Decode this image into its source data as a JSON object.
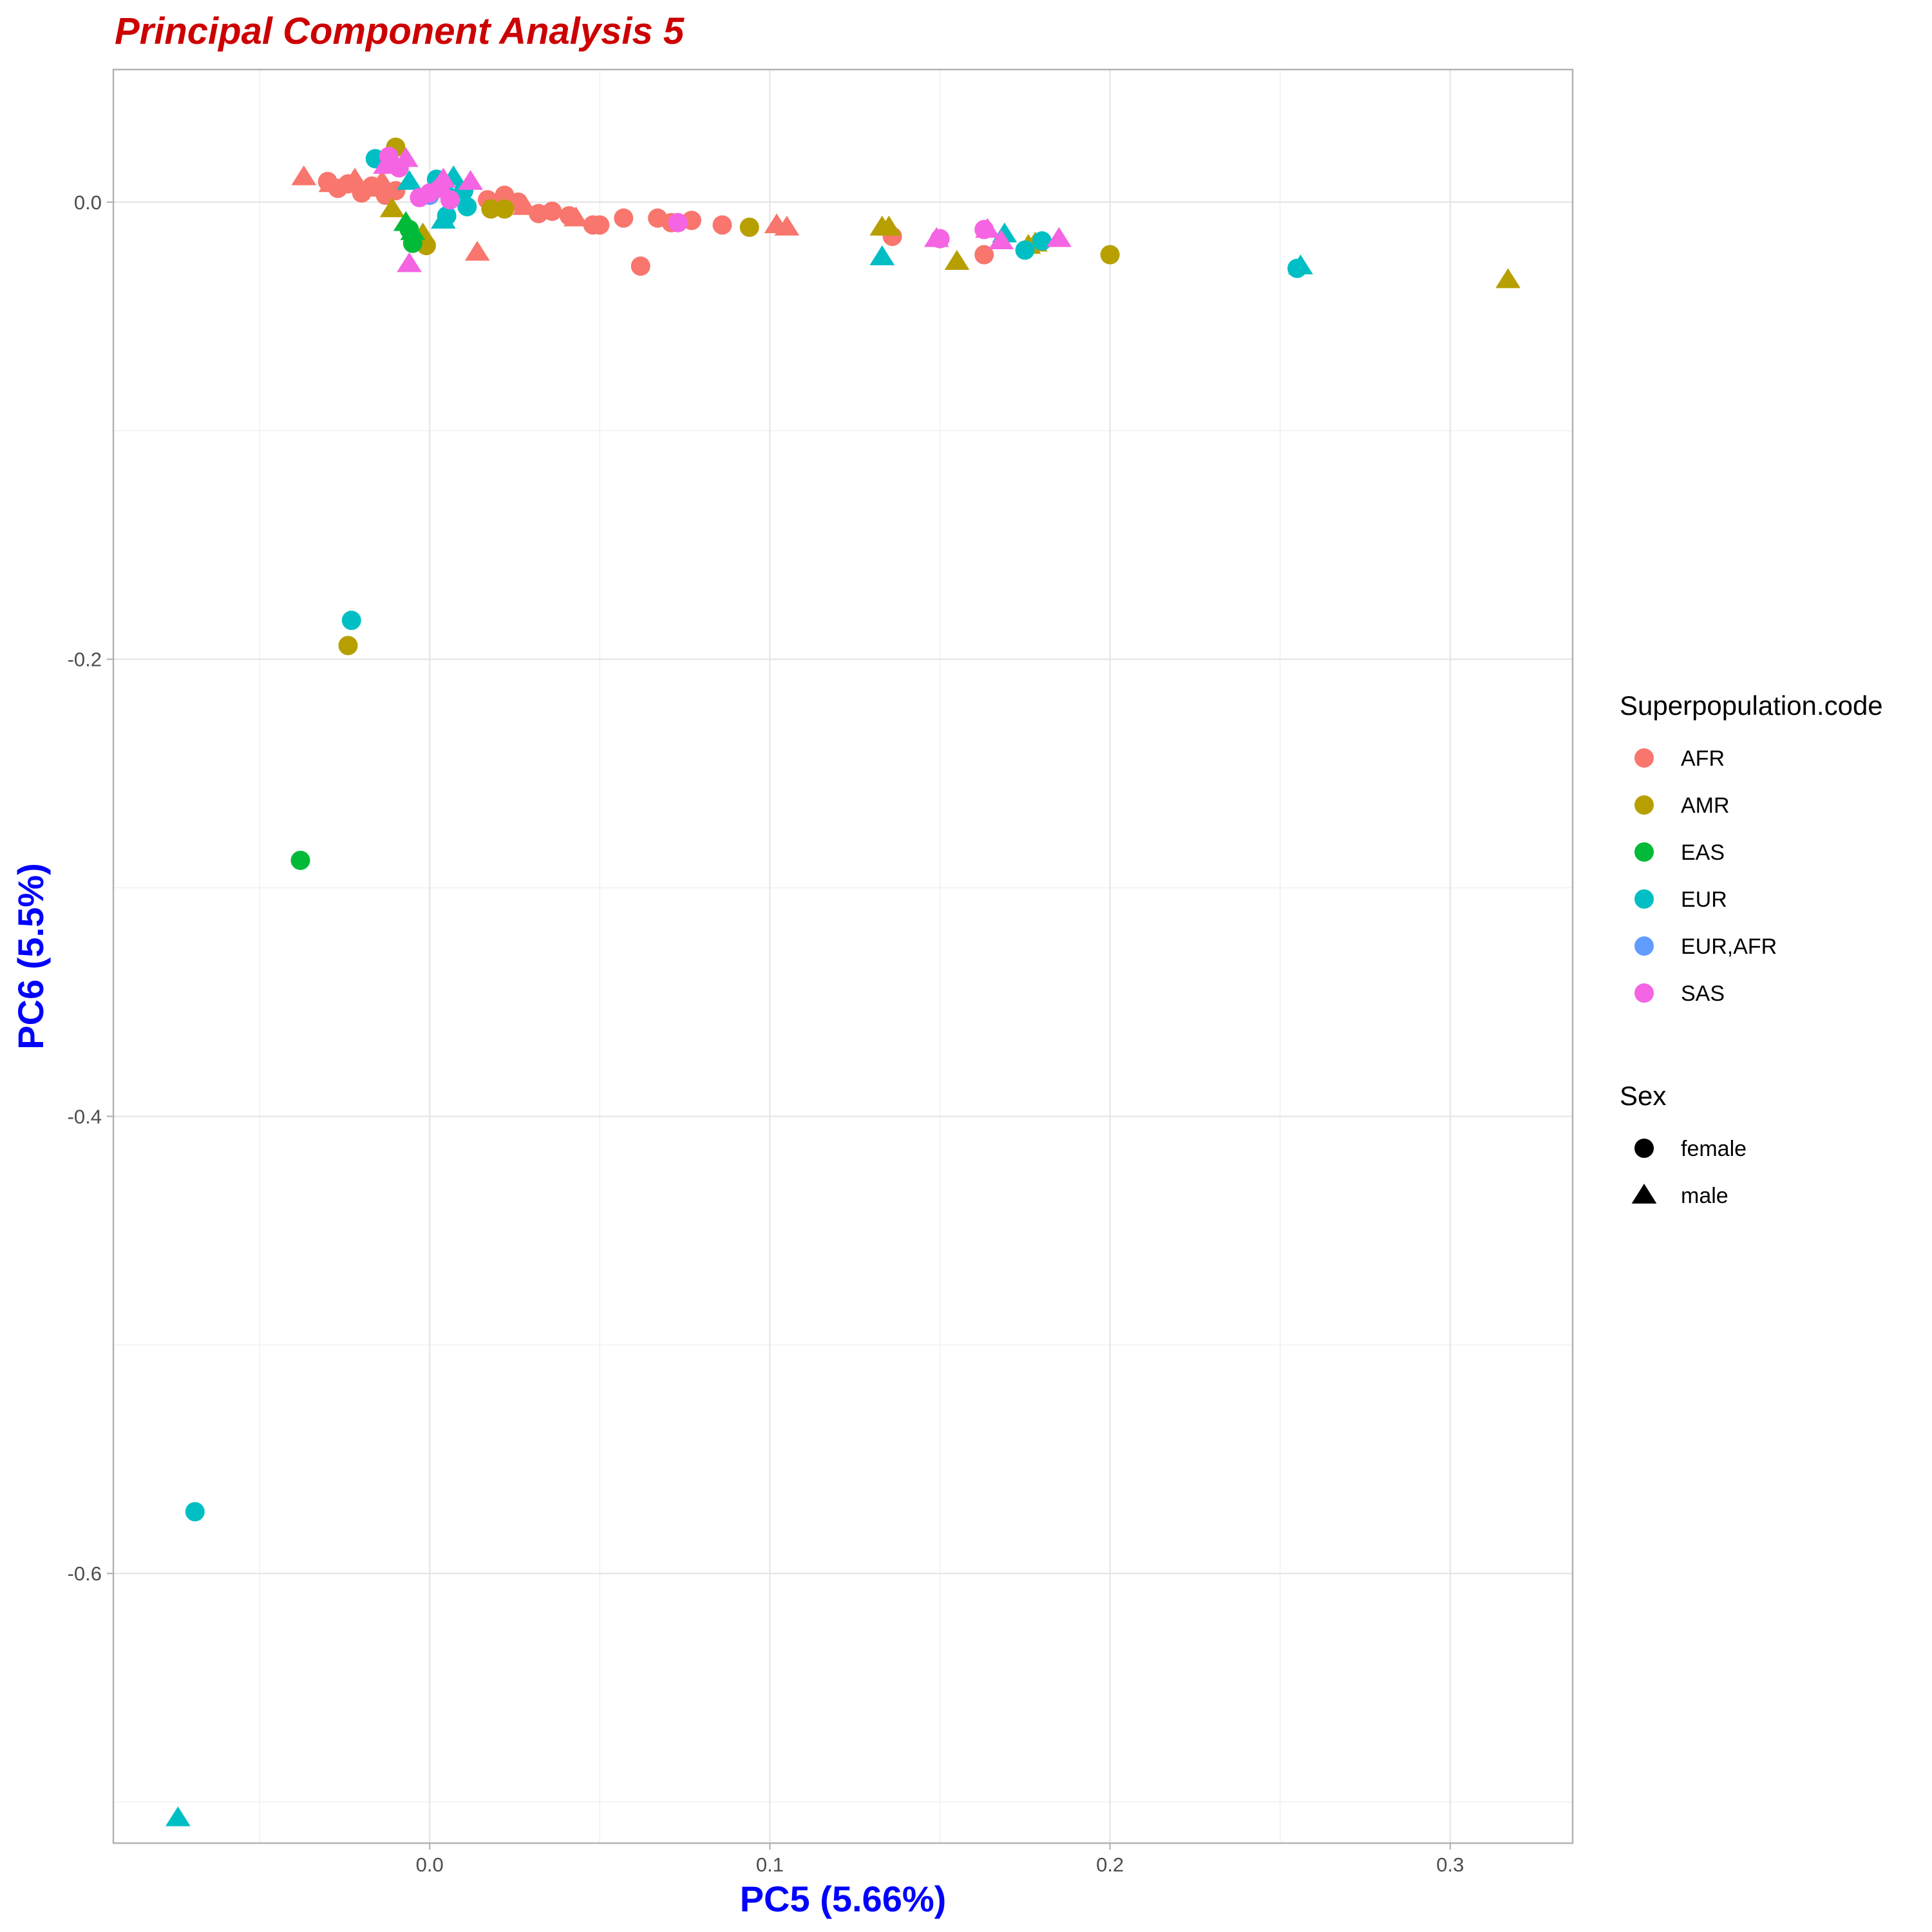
{
  "chart_data": {
    "type": "scatter",
    "title": "Principal Component Analysis 5",
    "xlabel": "PC5 (5.66%)",
    "ylabel": "PC6 (5.5%)",
    "xlim": [
      -0.093,
      0.336
    ],
    "ylim": [
      -0.718,
      0.058
    ],
    "x_ticks": [
      0.0,
      0.1,
      0.2,
      0.3
    ],
    "x_tick_labels": [
      "0.0",
      "0.1",
      "0.2",
      "0.3"
    ],
    "y_ticks": [
      0.0,
      -0.2,
      -0.4,
      -0.6
    ],
    "y_tick_labels": [
      "0.0",
      "-0.2",
      "-0.4",
      "-0.6"
    ],
    "grid": true,
    "legend_position": "right",
    "title_color": "#CC0000",
    "axis_title_color": "#0000FF",
    "legends": [
      {
        "title": "Superpopulation.code",
        "entries": [
          {
            "label": "AFR",
            "color": "#F8766D"
          },
          {
            "label": "AMR",
            "color": "#B79F00"
          },
          {
            "label": "EAS",
            "color": "#00BA38"
          },
          {
            "label": "EUR",
            "color": "#00BFC4"
          },
          {
            "label": "EUR,AFR",
            "color": "#619CFF"
          },
          {
            "label": "SAS",
            "color": "#F564E3"
          }
        ]
      },
      {
        "title": "Sex",
        "entries": [
          {
            "label": "female",
            "shape": "circle"
          },
          {
            "label": "male",
            "shape": "triangle"
          }
        ]
      }
    ],
    "series": [
      {
        "name": "AFR",
        "color": "#F8766D",
        "points": [
          {
            "x": -0.03,
            "y": 0.009,
            "sex": "female"
          },
          {
            "x": -0.027,
            "y": 0.006,
            "sex": "female"
          },
          {
            "x": -0.024,
            "y": 0.008,
            "sex": "female"
          },
          {
            "x": -0.02,
            "y": 0.004,
            "sex": "female"
          },
          {
            "x": -0.017,
            "y": 0.007,
            "sex": "female"
          },
          {
            "x": -0.013,
            "y": 0.003,
            "sex": "female"
          },
          {
            "x": -0.01,
            "y": 0.005,
            "sex": "female"
          },
          {
            "x": 0.017,
            "y": 0.001,
            "sex": "female"
          },
          {
            "x": 0.022,
            "y": 0.003,
            "sex": "female"
          },
          {
            "x": 0.026,
            "y": 0.0,
            "sex": "female"
          },
          {
            "x": 0.032,
            "y": -0.005,
            "sex": "female"
          },
          {
            "x": 0.036,
            "y": -0.004,
            "sex": "female"
          },
          {
            "x": 0.041,
            "y": -0.006,
            "sex": "female"
          },
          {
            "x": 0.048,
            "y": -0.01,
            "sex": "female"
          },
          {
            "x": 0.05,
            "y": -0.01,
            "sex": "female"
          },
          {
            "x": 0.057,
            "y": -0.007,
            "sex": "female"
          },
          {
            "x": 0.062,
            "y": -0.028,
            "sex": "female"
          },
          {
            "x": 0.067,
            "y": -0.007,
            "sex": "female"
          },
          {
            "x": 0.071,
            "y": -0.009,
            "sex": "female"
          },
          {
            "x": 0.077,
            "y": -0.008,
            "sex": "female"
          },
          {
            "x": 0.086,
            "y": -0.01,
            "sex": "female"
          },
          {
            "x": 0.136,
            "y": -0.015,
            "sex": "female"
          },
          {
            "x": 0.163,
            "y": -0.023,
            "sex": "female"
          },
          {
            "x": -0.037,
            "y": 0.011,
            "sex": "male"
          },
          {
            "x": -0.029,
            "y": 0.008,
            "sex": "male"
          },
          {
            "x": -0.022,
            "y": 0.01,
            "sex": "male"
          },
          {
            "x": -0.018,
            "y": 0.006,
            "sex": "male"
          },
          {
            "x": -0.014,
            "y": 0.009,
            "sex": "male"
          },
          {
            "x": 0.014,
            "y": -0.022,
            "sex": "male"
          },
          {
            "x": 0.02,
            "y": -0.001,
            "sex": "male"
          },
          {
            "x": 0.028,
            "y": -0.002,
            "sex": "male"
          },
          {
            "x": 0.043,
            "y": -0.007,
            "sex": "male"
          },
          {
            "x": 0.102,
            "y": -0.01,
            "sex": "male"
          },
          {
            "x": 0.105,
            "y": -0.011,
            "sex": "male"
          }
        ]
      },
      {
        "name": "AMR",
        "color": "#B79F00",
        "points": [
          {
            "x": -0.01,
            "y": 0.024,
            "sex": "female"
          },
          {
            "x": -0.001,
            "y": -0.019,
            "sex": "female"
          },
          {
            "x": 0.018,
            "y": -0.003,
            "sex": "female"
          },
          {
            "x": 0.022,
            "y": -0.003,
            "sex": "female"
          },
          {
            "x": 0.094,
            "y": -0.011,
            "sex": "female"
          },
          {
            "x": 0.2,
            "y": -0.023,
            "sex": "female"
          },
          {
            "x": -0.024,
            "y": -0.194,
            "sex": "female"
          },
          {
            "x": -0.011,
            "y": -0.003,
            "sex": "male"
          },
          {
            "x": -0.002,
            "y": -0.014,
            "sex": "male"
          },
          {
            "x": 0.133,
            "y": -0.011,
            "sex": "male"
          },
          {
            "x": 0.135,
            "y": -0.011,
            "sex": "male"
          },
          {
            "x": 0.155,
            "y": -0.026,
            "sex": "male"
          },
          {
            "x": 0.176,
            "y": -0.019,
            "sex": "male"
          },
          {
            "x": 0.178,
            "y": -0.018,
            "sex": "male"
          },
          {
            "x": 0.317,
            "y": -0.034,
            "sex": "male"
          }
        ]
      },
      {
        "name": "EAS",
        "color": "#00BA38",
        "points": [
          {
            "x": -0.006,
            "y": -0.012,
            "sex": "female"
          },
          {
            "x": -0.005,
            "y": -0.018,
            "sex": "female"
          },
          {
            "x": -0.038,
            "y": -0.288,
            "sex": "female"
          },
          {
            "x": -0.007,
            "y": -0.009,
            "sex": "male"
          },
          {
            "x": -0.005,
            "y": -0.013,
            "sex": "male"
          }
        ]
      },
      {
        "name": "EUR",
        "color": "#00BFC4",
        "points": [
          {
            "x": -0.016,
            "y": 0.019,
            "sex": "female"
          },
          {
            "x": 0.002,
            "y": 0.01,
            "sex": "female"
          },
          {
            "x": 0.005,
            "y": -0.006,
            "sex": "female"
          },
          {
            "x": 0.01,
            "y": 0.005,
            "sex": "female"
          },
          {
            "x": 0.011,
            "y": -0.002,
            "sex": "female"
          },
          {
            "x": 0.175,
            "y": -0.021,
            "sex": "female"
          },
          {
            "x": 0.18,
            "y": -0.017,
            "sex": "female"
          },
          {
            "x": 0.255,
            "y": -0.029,
            "sex": "female"
          },
          {
            "x": -0.023,
            "y": -0.183,
            "sex": "female"
          },
          {
            "x": -0.069,
            "y": -0.573,
            "sex": "female"
          },
          {
            "x": -0.006,
            "y": 0.009,
            "sex": "male"
          },
          {
            "x": 0.004,
            "y": 0.008,
            "sex": "male"
          },
          {
            "x": 0.007,
            "y": 0.011,
            "sex": "male"
          },
          {
            "x": 0.004,
            "y": -0.008,
            "sex": "male"
          },
          {
            "x": 0.133,
            "y": -0.024,
            "sex": "male"
          },
          {
            "x": 0.169,
            "y": -0.014,
            "sex": "male"
          },
          {
            "x": 0.256,
            "y": -0.028,
            "sex": "male"
          },
          {
            "x": -0.074,
            "y": -0.707,
            "sex": "male"
          }
        ]
      },
      {
        "name": "EUR,AFR",
        "color": "#619CFF",
        "points": [
          {
            "x": 0.0,
            "y": 0.003,
            "sex": "female"
          }
        ]
      },
      {
        "name": "SAS",
        "color": "#F564E3",
        "points": [
          {
            "x": -0.012,
            "y": 0.02,
            "sex": "female"
          },
          {
            "x": -0.009,
            "y": 0.015,
            "sex": "female"
          },
          {
            "x": -0.003,
            "y": 0.002,
            "sex": "female"
          },
          {
            "x": 0.0,
            "y": 0.004,
            "sex": "female"
          },
          {
            "x": 0.003,
            "y": 0.006,
            "sex": "female"
          },
          {
            "x": 0.006,
            "y": 0.001,
            "sex": "female"
          },
          {
            "x": 0.073,
            "y": -0.009,
            "sex": "female"
          },
          {
            "x": 0.15,
            "y": -0.016,
            "sex": "female"
          },
          {
            "x": 0.163,
            "y": -0.012,
            "sex": "female"
          },
          {
            "x": -0.013,
            "y": 0.016,
            "sex": "male"
          },
          {
            "x": -0.007,
            "y": 0.019,
            "sex": "male"
          },
          {
            "x": 0.012,
            "y": 0.009,
            "sex": "male"
          },
          {
            "x": 0.004,
            "y": 0.01,
            "sex": "male"
          },
          {
            "x": -0.006,
            "y": -0.027,
            "sex": "male"
          },
          {
            "x": 0.149,
            "y": -0.016,
            "sex": "male"
          },
          {
            "x": 0.164,
            "y": -0.012,
            "sex": "male"
          },
          {
            "x": 0.168,
            "y": -0.017,
            "sex": "male"
          },
          {
            "x": 0.185,
            "y": -0.016,
            "sex": "male"
          }
        ]
      }
    ]
  }
}
